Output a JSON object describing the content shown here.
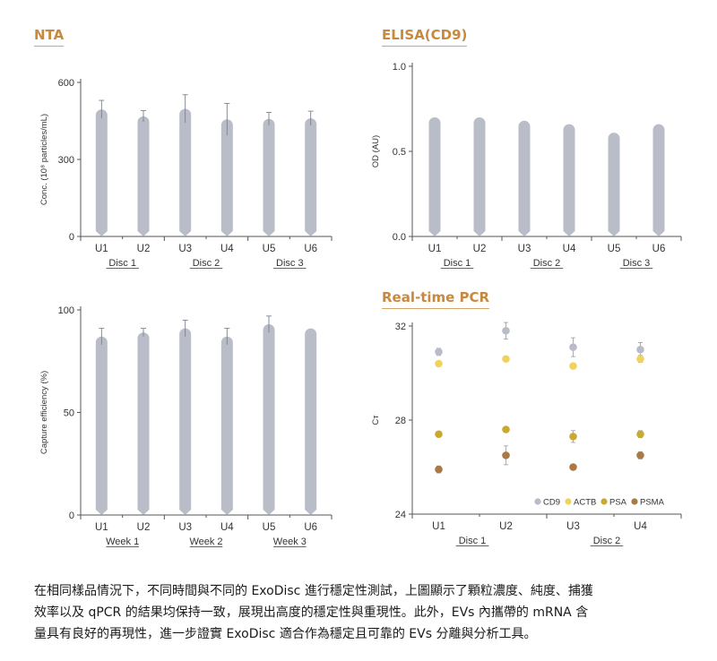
{
  "chart_data": [
    {
      "id": "nta",
      "type": "bar",
      "title": "NTA",
      "ylabel": "Conc. (10⁸ particles/mL)",
      "ylim": [
        0,
        600
      ],
      "yticks": [
        "0",
        "300",
        "600"
      ],
      "yticks_values": [
        0,
        300,
        600
      ],
      "categories": [
        "U1",
        "U2",
        "U3",
        "U4",
        "U5",
        "U6"
      ],
      "groups": [
        "Disc 1",
        "Disc 2",
        "Disc 3"
      ],
      "values": [
        495,
        468,
        497,
        456,
        458,
        460
      ],
      "errors": [
        35,
        22,
        55,
        62,
        25,
        28
      ]
    },
    {
      "id": "elisa",
      "type": "bar",
      "title": "ELISA(CD9)",
      "ylabel": "OD (AU)",
      "ylim": [
        0,
        1.0
      ],
      "yticks": [
        "0.0",
        "0.5",
        "1.0"
      ],
      "yticks_values": [
        0,
        0.5,
        1.0
      ],
      "categories": [
        "U1",
        "U2",
        "U3",
        "U4",
        "U5",
        "U6"
      ],
      "groups": [
        "Disc 1",
        "Disc 2",
        "Disc 3"
      ],
      "values": [
        0.7,
        0.7,
        0.68,
        0.66,
        0.61,
        0.66
      ],
      "errors": [
        0,
        0,
        0,
        0,
        0,
        0
      ]
    },
    {
      "id": "capture",
      "type": "bar",
      "title": "",
      "ylabel": "Capture efficiency (%)",
      "ylim": [
        0,
        100
      ],
      "yticks": [
        "0",
        "50",
        "100"
      ],
      "yticks_values": [
        0,
        50,
        100
      ],
      "categories": [
        "U1",
        "U2",
        "U3",
        "U4",
        "U5",
        "U6"
      ],
      "groups": [
        "Week 1",
        "Week 2",
        "Week 3"
      ],
      "values": [
        87,
        89,
        91,
        87,
        93,
        91
      ],
      "errors": [
        4,
        2,
        4,
        4,
        4,
        0
      ]
    },
    {
      "id": "pcr",
      "type": "scatter",
      "title": "Real-time PCR",
      "ylabel": "Cᴛ",
      "ylim": [
        24,
        32
      ],
      "yticks": [
        "24",
        "28",
        "32"
      ],
      "yticks_values": [
        24,
        28,
        32
      ],
      "categories": [
        "U1",
        "U2",
        "U3",
        "U4"
      ],
      "groups": [
        "Disc 1",
        "Disc 2"
      ],
      "legend_position": "bottom-right",
      "series": [
        {
          "name": "CD9",
          "color": "#b8bcc8",
          "values": [
            30.9,
            31.8,
            31.1,
            31.0
          ],
          "errors": [
            0.15,
            0.35,
            0.4,
            0.3
          ]
        },
        {
          "name": "ACTB",
          "color": "#f0d35a",
          "values": [
            30.4,
            30.6,
            30.3,
            30.6
          ],
          "errors": [
            0.1,
            0.1,
            0.1,
            0.15
          ]
        },
        {
          "name": "PSA",
          "color": "#c9aa30",
          "values": [
            27.4,
            27.6,
            27.3,
            27.4
          ],
          "errors": [
            0.1,
            0.1,
            0.25,
            0.15
          ]
        },
        {
          "name": "PSMA",
          "color": "#a97a45",
          "values": [
            25.9,
            26.5,
            26.0,
            26.5
          ],
          "errors": [
            0.15,
            0.4,
            0.1,
            0.15
          ]
        }
      ]
    }
  ],
  "caption": {
    "lines": [
      "在相同樣品情況下，不同時間與不同的 ExoDisc 進行穩定性測試，上圖顯示了顆粒濃度、純度、捕獲",
      "效率以及 qPCR 的結果均保持一致，展現出高度的穩定性與重現性。此外，EVs 內攜帶的 mRNA 含",
      "量具有良好的再現性，進一步證實 ExoDisc 適合作為穩定且可靠的 EVs 分離與分析工具。"
    ]
  }
}
